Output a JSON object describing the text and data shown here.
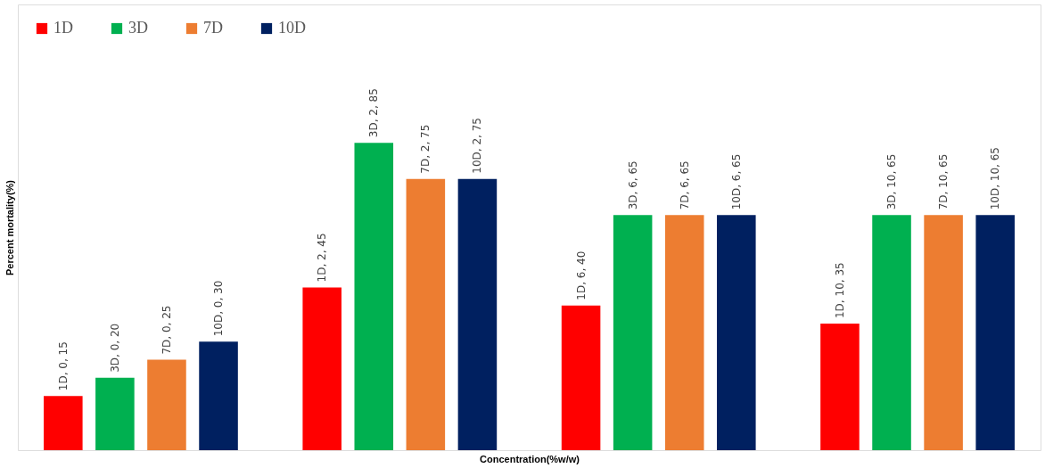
{
  "chart_data": {
    "type": "bar",
    "xlabel": "Concentration(%w/w)",
    "ylabel": "Percent mortality(%)",
    "categories": [
      null,
      null,
      null,
      null
    ],
    "series": [
      {
        "name": "1D",
        "color": "#ff0000",
        "values": [
          15,
          45,
          40,
          35
        ],
        "value_labels": [
          "1D, 0, 15",
          "1D, 2, 45",
          "1D, 6, 40",
          "1D, 10, 35"
        ]
      },
      {
        "name": "3D",
        "color": "#00b050",
        "values": [
          20,
          85,
          65,
          65
        ],
        "value_labels": [
          "3D, 0, 20",
          "3D, 2, 85",
          "3D, 6, 65",
          "3D, 10, 65"
        ]
      },
      {
        "name": "7D",
        "color": "#ed7d31",
        "values": [
          25,
          75,
          65,
          65
        ],
        "value_labels": [
          "7D, 0, 25",
          "7D, 2, 75",
          "7D, 6, 65",
          "7D, 10, 65"
        ]
      },
      {
        "name": "10D",
        "color": "#002060",
        "values": [
          30,
          75,
          65,
          65
        ],
        "value_labels": [
          "10D, 0, 30",
          "10D, 2, 75",
          "10D, 6, 65",
          "10D, 10, 65"
        ]
      }
    ],
    "legend": "top left",
    "grid": false,
    "tick_labels": false
  }
}
